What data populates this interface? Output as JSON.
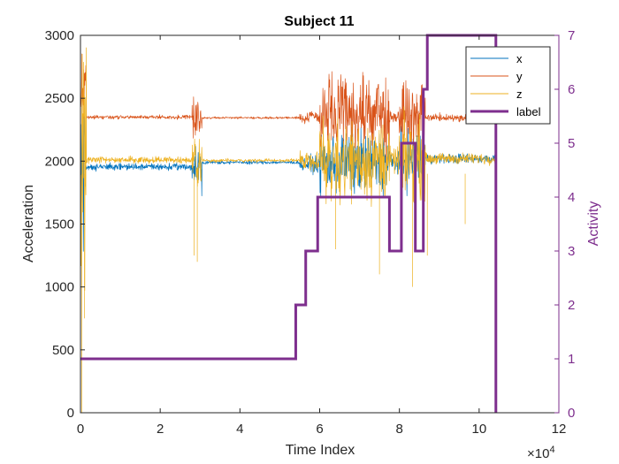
{
  "chart_data": {
    "type": "line",
    "title": "Subject 11",
    "xlabel": "Time Index",
    "ylabel_left": "Acceleration",
    "ylabel_right": "Activity",
    "x_exponent_label": "×10",
    "x_exponent_power": "4",
    "xlim": [
      0,
      120000
    ],
    "ylim_left": [
      0,
      3000
    ],
    "ylim_right": [
      0,
      7
    ],
    "x_ticks": [
      0,
      20000,
      40000,
      60000,
      80000,
      100000,
      120000
    ],
    "x_tick_labels": [
      "0",
      "2",
      "4",
      "6",
      "8",
      "10",
      "12"
    ],
    "y_left_ticks": [
      0,
      500,
      1000,
      1500,
      2000,
      2500,
      3000
    ],
    "y_left_tick_labels": [
      "0",
      "500",
      "1000",
      "1500",
      "2000",
      "2500",
      "3000"
    ],
    "y_right_ticks": [
      0,
      1,
      2,
      3,
      4,
      5,
      6,
      7
    ],
    "y_right_tick_labels": [
      "0",
      "1",
      "2",
      "3",
      "4",
      "5",
      "6",
      "7"
    ],
    "grid": false,
    "legend_position": "top-right",
    "colors": {
      "x": "#0072BD",
      "y": "#D95319",
      "z": "#EDB120",
      "label": "#7E2F8E"
    },
    "series": [
      {
        "name": "x",
        "axis": "left",
        "color": "#0072BD",
        "segments": [
          {
            "x_start": 0,
            "x_end": 1200,
            "level": 1950,
            "amp": 700
          },
          {
            "x_start": 1200,
            "x_end": 28000,
            "level": 1955,
            "amp": 25
          },
          {
            "x_start": 28000,
            "x_end": 30500,
            "level": 1950,
            "amp": 160
          },
          {
            "x_start": 30500,
            "x_end": 55000,
            "level": 1990,
            "amp": 12
          },
          {
            "x_start": 55000,
            "x_end": 60000,
            "level": 1975,
            "amp": 60
          },
          {
            "x_start": 60000,
            "x_end": 77500,
            "level": 1990,
            "amp": 230
          },
          {
            "x_start": 77500,
            "x_end": 80000,
            "level": 1990,
            "amp": 80
          },
          {
            "x_start": 80000,
            "x_end": 86500,
            "level": 2020,
            "amp": 200
          },
          {
            "x_start": 86500,
            "x_end": 104000,
            "level": 2020,
            "amp": 35
          }
        ]
      },
      {
        "name": "y",
        "axis": "left",
        "color": "#D95319",
        "segments": [
          {
            "x_start": 0,
            "x_end": 1500,
            "level": 2550,
            "amp": 320
          },
          {
            "x_start": 1500,
            "x_end": 28000,
            "level": 2350,
            "amp": 14
          },
          {
            "x_start": 28000,
            "x_end": 30500,
            "level": 2350,
            "amp": 150
          },
          {
            "x_start": 30500,
            "x_end": 55000,
            "level": 2345,
            "amp": 8
          },
          {
            "x_start": 55000,
            "x_end": 60000,
            "level": 2350,
            "amp": 45
          },
          {
            "x_start": 60000,
            "x_end": 77500,
            "level": 2360,
            "amp": 280
          },
          {
            "x_start": 77500,
            "x_end": 80000,
            "level": 2350,
            "amp": 60
          },
          {
            "x_start": 80000,
            "x_end": 86500,
            "level": 2360,
            "amp": 250
          },
          {
            "x_start": 86500,
            "x_end": 104000,
            "level": 2345,
            "amp": 30
          }
        ]
      },
      {
        "name": "z",
        "axis": "left",
        "color": "#EDB120",
        "segments": [
          {
            "x_start": 0,
            "x_end": 1500,
            "level": 1900,
            "amp": 900
          },
          {
            "x_start": 1500,
            "x_end": 28000,
            "level": 2010,
            "amp": 25
          },
          {
            "x_start": 28000,
            "x_end": 30500,
            "level": 2000,
            "amp": 200
          },
          {
            "x_start": 30500,
            "x_end": 55000,
            "level": 2005,
            "amp": 12
          },
          {
            "x_start": 55000,
            "x_end": 60000,
            "level": 2010,
            "amp": 70
          },
          {
            "x_start": 60000,
            "x_end": 77500,
            "level": 2010,
            "amp": 300
          },
          {
            "x_start": 77500,
            "x_end": 80000,
            "level": 2005,
            "amp": 90
          },
          {
            "x_start": 80000,
            "x_end": 86500,
            "level": 2020,
            "amp": 280
          },
          {
            "x_start": 86500,
            "x_end": 104000,
            "level": 2020,
            "amp": 40
          }
        ],
        "spikes": [
          {
            "x": 300,
            "y": 0
          },
          {
            "x": 1000,
            "y": 750
          },
          {
            "x": 28500,
            "y": 1250
          },
          {
            "x": 29300,
            "y": 1200
          },
          {
            "x": 64000,
            "y": 1300
          },
          {
            "x": 75000,
            "y": 1100
          },
          {
            "x": 83300,
            "y": 1000
          },
          {
            "x": 87000,
            "y": 1250
          },
          {
            "x": 96500,
            "y": 1500
          }
        ]
      },
      {
        "name": "label",
        "axis": "right",
        "color": "#7E2F8E",
        "step": true,
        "x": [
          0,
          54000,
          54000,
          56500,
          56500,
          59500,
          59500,
          77500,
          77500,
          80500,
          80500,
          84000,
          84000,
          86000,
          86000,
          87000,
          87000,
          104200,
          104200
        ],
        "y": [
          1,
          1,
          2,
          2,
          3,
          3,
          4,
          4,
          3,
          3,
          5,
          5,
          3,
          3,
          6,
          6,
          7,
          7,
          0
        ]
      }
    ]
  }
}
